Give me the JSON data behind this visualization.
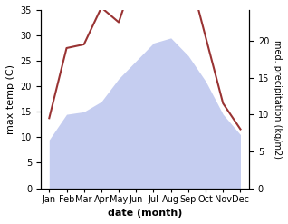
{
  "months": [
    "Jan",
    "Feb",
    "Mar",
    "Apr",
    "May",
    "Jun",
    "Jul",
    "Aug",
    "Sep",
    "Oct",
    "Nov",
    "Dec"
  ],
  "max_temp": [
    9.5,
    14.5,
    15.0,
    17.0,
    21.5,
    25.0,
    28.5,
    29.5,
    26.0,
    21.0,
    14.5,
    10.5
  ],
  "precipitation": [
    9.5,
    19.0,
    19.5,
    24.5,
    22.5,
    29.5,
    30.0,
    34.5,
    29.5,
    20.5,
    11.5,
    8.0
  ],
  "temp_color": "#993333",
  "precip_fill_color": "#c5cdf0",
  "temp_ylim": [
    0,
    35
  ],
  "precip_ylim": [
    0,
    24.17
  ],
  "temp_yticks": [
    0,
    5,
    10,
    15,
    20,
    25,
    30,
    35
  ],
  "precip_yticks": [
    0,
    5,
    10,
    15,
    20
  ],
  "xlabel": "date (month)",
  "ylabel_left": "max temp (C)",
  "ylabel_right": "med. precipitation (kg/m2)",
  "bg_color": "#ffffff"
}
